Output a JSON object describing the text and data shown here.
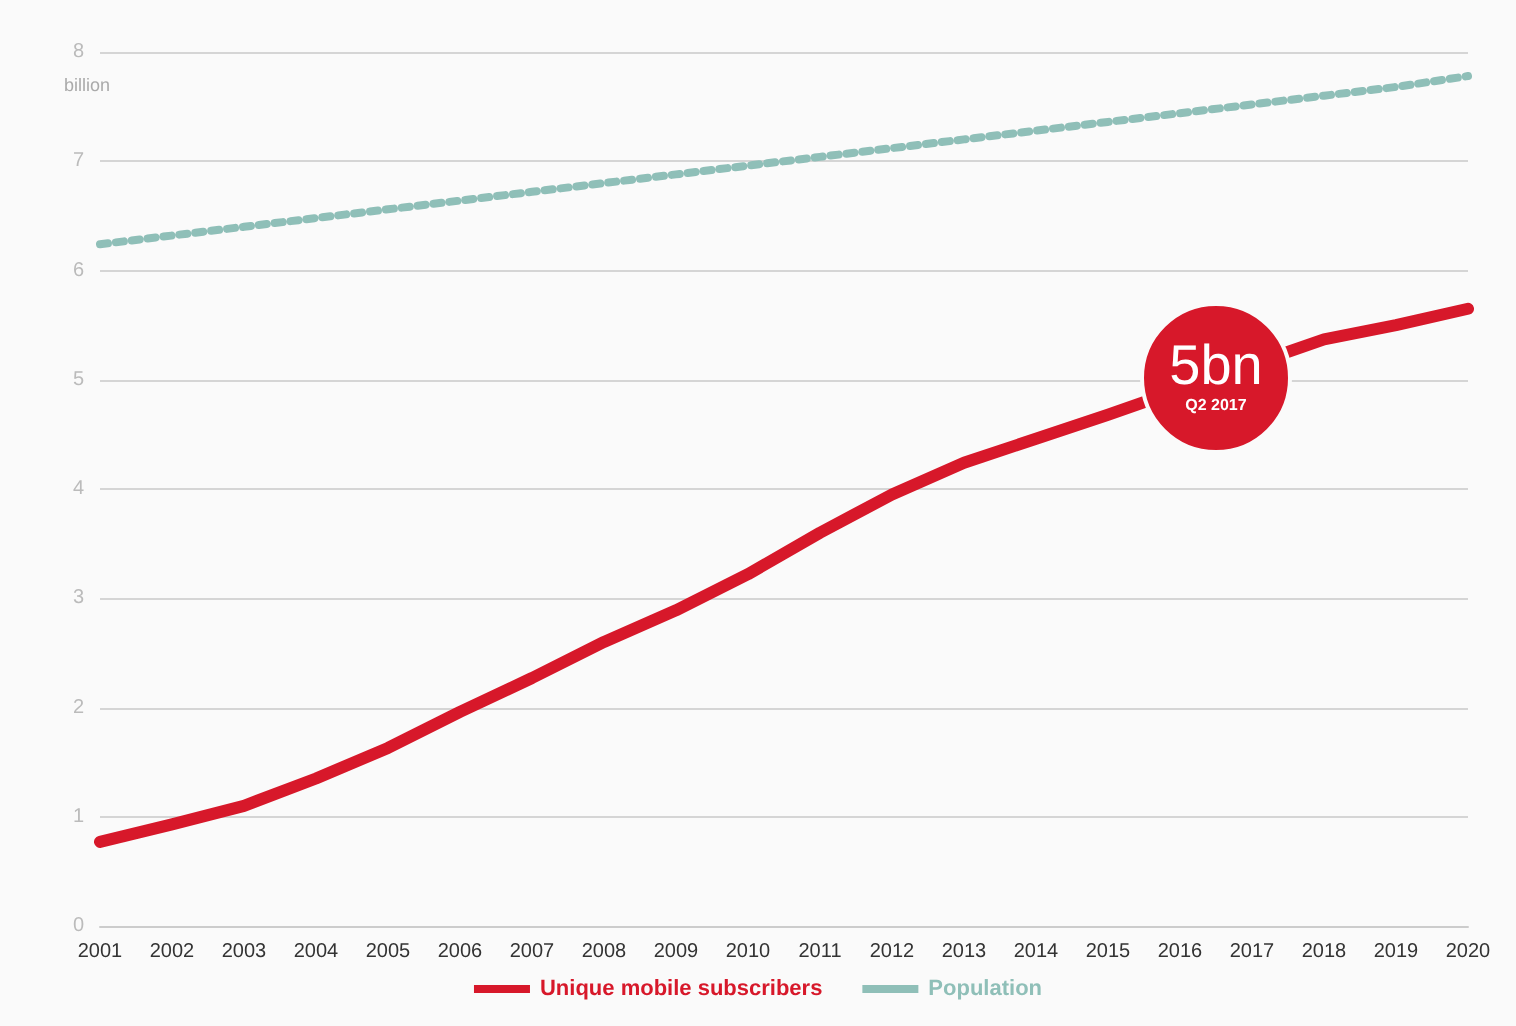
{
  "chart_data": {
    "type": "line",
    "ylabel": "billion",
    "x": [
      2001,
      2002,
      2003,
      2004,
      2005,
      2006,
      2007,
      2008,
      2009,
      2010,
      2011,
      2012,
      2013,
      2014,
      2015,
      2016,
      2017,
      2018,
      2019,
      2020
    ],
    "series": [
      {
        "name": "Unique mobile subscribers",
        "color": "#d7182a",
        "line_style": "solid",
        "values": [
          0.77,
          0.93,
          1.1,
          1.35,
          1.63,
          1.96,
          2.27,
          2.6,
          2.89,
          3.22,
          3.6,
          3.95,
          4.24,
          4.46,
          4.68,
          null,
          null,
          5.37,
          5.5,
          5.65
        ]
      },
      {
        "name": "Population",
        "color": "#8fbfb8",
        "line_style": "dotted",
        "values": [
          6.24,
          6.32,
          6.4,
          6.48,
          6.56,
          6.64,
          6.72,
          6.8,
          6.88,
          6.96,
          7.04,
          7.12,
          7.2,
          7.28,
          7.36,
          7.44,
          7.52,
          7.6,
          7.68,
          7.78
        ]
      }
    ],
    "xlim": [
      2001,
      2020
    ],
    "xticks": [
      2001,
      2002,
      2003,
      2004,
      2005,
      2006,
      2007,
      2008,
      2009,
      2010,
      2011,
      2012,
      2013,
      2014,
      2015,
      2016,
      2017,
      2018,
      2019,
      2020
    ],
    "ylim": [
      0,
      8
    ],
    "yticks": [
      0,
      1,
      2,
      3,
      4,
      5,
      6,
      7,
      8
    ],
    "annotations": [
      "5bn",
      "Q2 2017"
    ],
    "grid": "y",
    "legend": "bottom",
    "marker": "none"
  }
}
